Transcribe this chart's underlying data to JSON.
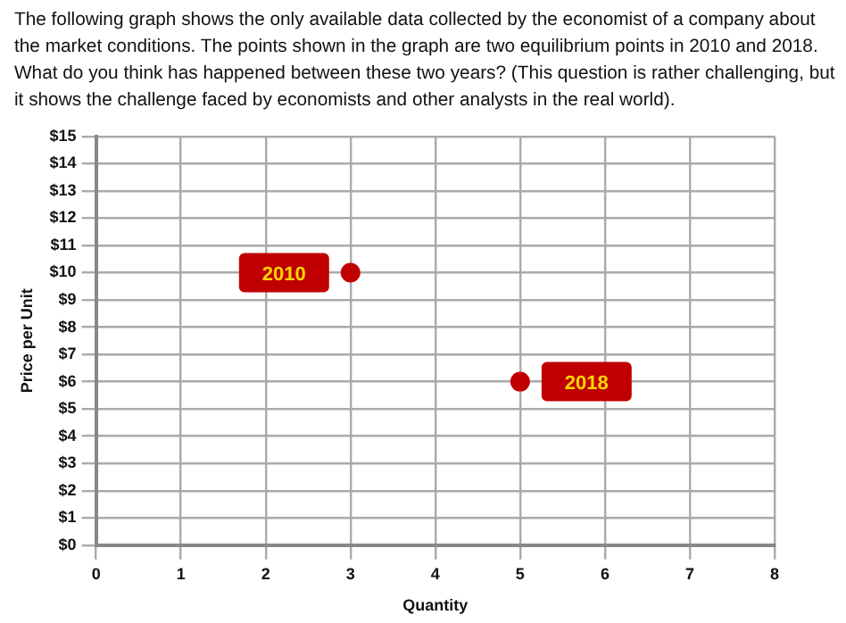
{
  "chart_data": {
    "type": "scatter",
    "title": "The following graph shows the only available data collected by the economist of a company about the market conditions. The points shown in the graph are two equilibrium points in 2010 and 2018. What do you think has happened between these two years? (This question is rather challenging, but it shows the challenge faced by economists and other analysts in the real world).",
    "xlabel": "Quantity",
    "ylabel": "Price per Unit",
    "x": [
      3,
      5
    ],
    "values": [
      10,
      6
    ],
    "color": "#c00000",
    "marker": "circle",
    "xlim": [
      0,
      8
    ],
    "xticks": [
      0,
      1,
      2,
      3,
      4,
      5,
      6,
      7,
      8
    ],
    "ylim": [
      0,
      15
    ],
    "yticks": [
      {
        "value": 0,
        "label": "$0"
      },
      {
        "value": 1,
        "label": "$1"
      },
      {
        "value": 2,
        "label": "$2"
      },
      {
        "value": 3,
        "label": "$3"
      },
      {
        "value": 4,
        "label": "$4"
      },
      {
        "value": 5,
        "label": "$5"
      },
      {
        "value": 6,
        "label": "$6"
      },
      {
        "value": 7,
        "label": "$7"
      },
      {
        "value": 8,
        "label": "$8"
      },
      {
        "value": 9,
        "label": "$9"
      },
      {
        "value": 10,
        "label": "$10"
      },
      {
        "value": 11,
        "label": "$11"
      },
      {
        "value": 12,
        "label": "$12"
      },
      {
        "value": 13,
        "label": "$13"
      },
      {
        "value": 14,
        "label": "$14"
      },
      {
        "value": 15,
        "label": "$15"
      }
    ],
    "grid": true,
    "legend": false,
    "annotations": [
      {
        "text": "2010",
        "x": 3,
        "y": 10
      },
      {
        "text": "2018",
        "x": 5,
        "y": 6
      }
    ]
  }
}
